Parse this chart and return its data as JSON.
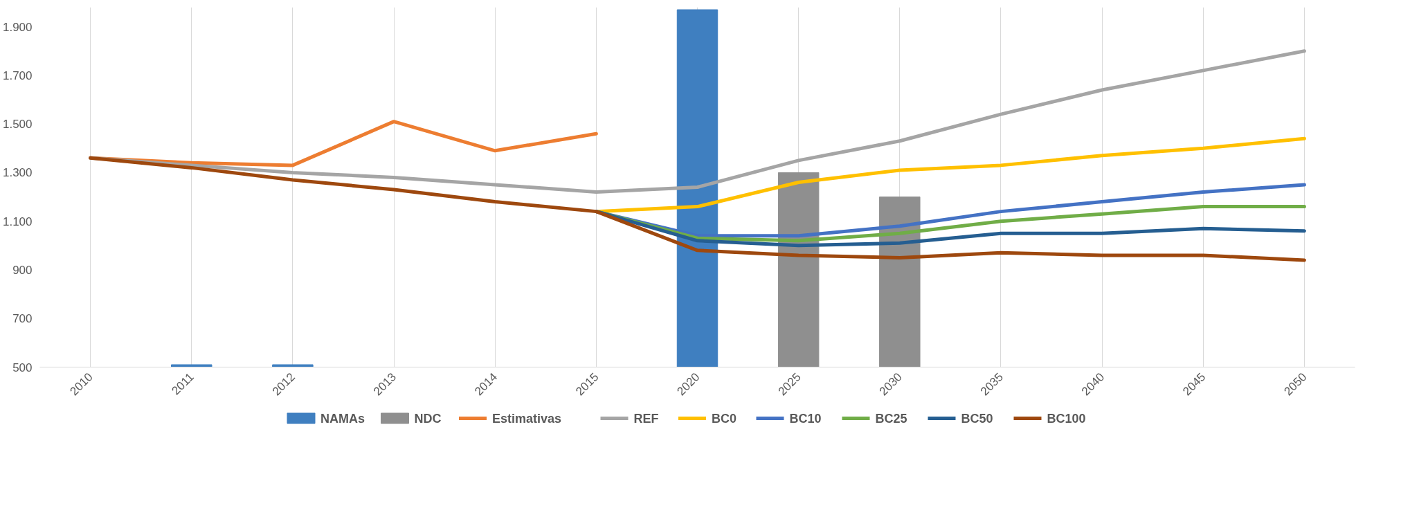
{
  "chart_data": {
    "type": "line",
    "categories": [
      "2010",
      "2011",
      "2012",
      "2013",
      "2014",
      "2015",
      "2020",
      "2025",
      "2030",
      "2035",
      "2040",
      "2045",
      "2050"
    ],
    "ylim": [
      500,
      1980
    ],
    "yticks": [
      {
        "value": 500,
        "label": "500"
      },
      {
        "value": 700,
        "label": "700"
      },
      {
        "value": 900,
        "label": "900"
      },
      {
        "value": 1100,
        "label": "1.100"
      },
      {
        "value": 1300,
        "label": "1.300"
      },
      {
        "value": 1500,
        "label": "1.500"
      },
      {
        "value": 1700,
        "label": "1.700"
      },
      {
        "value": 1900,
        "label": "1.900"
      }
    ],
    "grid": "x",
    "legend": "bottom",
    "series": [
      {
        "name": "NAMAs",
        "type": "bar",
        "color": "#3f7fc0",
        "values": [
          null,
          510,
          510,
          null,
          null,
          null,
          1970,
          null,
          null,
          null,
          null,
          null,
          null
        ]
      },
      {
        "name": "NDC",
        "type": "bar",
        "color": "#8f8f8f",
        "values": [
          null,
          null,
          null,
          null,
          null,
          null,
          null,
          1300,
          1200,
          null,
          null,
          null,
          null
        ]
      },
      {
        "name": "Estimativas",
        "color": "#ed7d31",
        "values": [
          1360,
          1340,
          1330,
          1510,
          1390,
          1460,
          null,
          null,
          null,
          null,
          null,
          null,
          null
        ]
      },
      {
        "name": "REF",
        "color": "#a5a5a5",
        "values": [
          1360,
          1330,
          1300,
          1280,
          1250,
          1220,
          1240,
          1350,
          1430,
          1540,
          1640,
          1720,
          1800
        ]
      },
      {
        "name": "BC0",
        "color": "#ffc000",
        "values": [
          null,
          null,
          null,
          null,
          null,
          1140,
          1160,
          1260,
          1310,
          1330,
          1370,
          1400,
          1440
        ]
      },
      {
        "name": "BC10",
        "color": "#4472c4",
        "values": [
          null,
          null,
          null,
          null,
          null,
          1140,
          1040,
          1040,
          1080,
          1140,
          1180,
          1220,
          1250
        ]
      },
      {
        "name": "BC25",
        "color": "#70ad47",
        "values": [
          null,
          null,
          null,
          null,
          null,
          1140,
          1030,
          1020,
          1050,
          1100,
          1130,
          1160,
          1160
        ]
      },
      {
        "name": "BC50",
        "color": "#255e91",
        "values": [
          null,
          null,
          null,
          null,
          null,
          1140,
          1020,
          1000,
          1010,
          1050,
          1050,
          1070,
          1060
        ]
      },
      {
        "name": "BC100",
        "color": "#9e480e",
        "values": [
          1360,
          1320,
          1270,
          1230,
          1180,
          1140,
          980,
          960,
          950,
          970,
          960,
          960,
          940
        ]
      }
    ]
  }
}
